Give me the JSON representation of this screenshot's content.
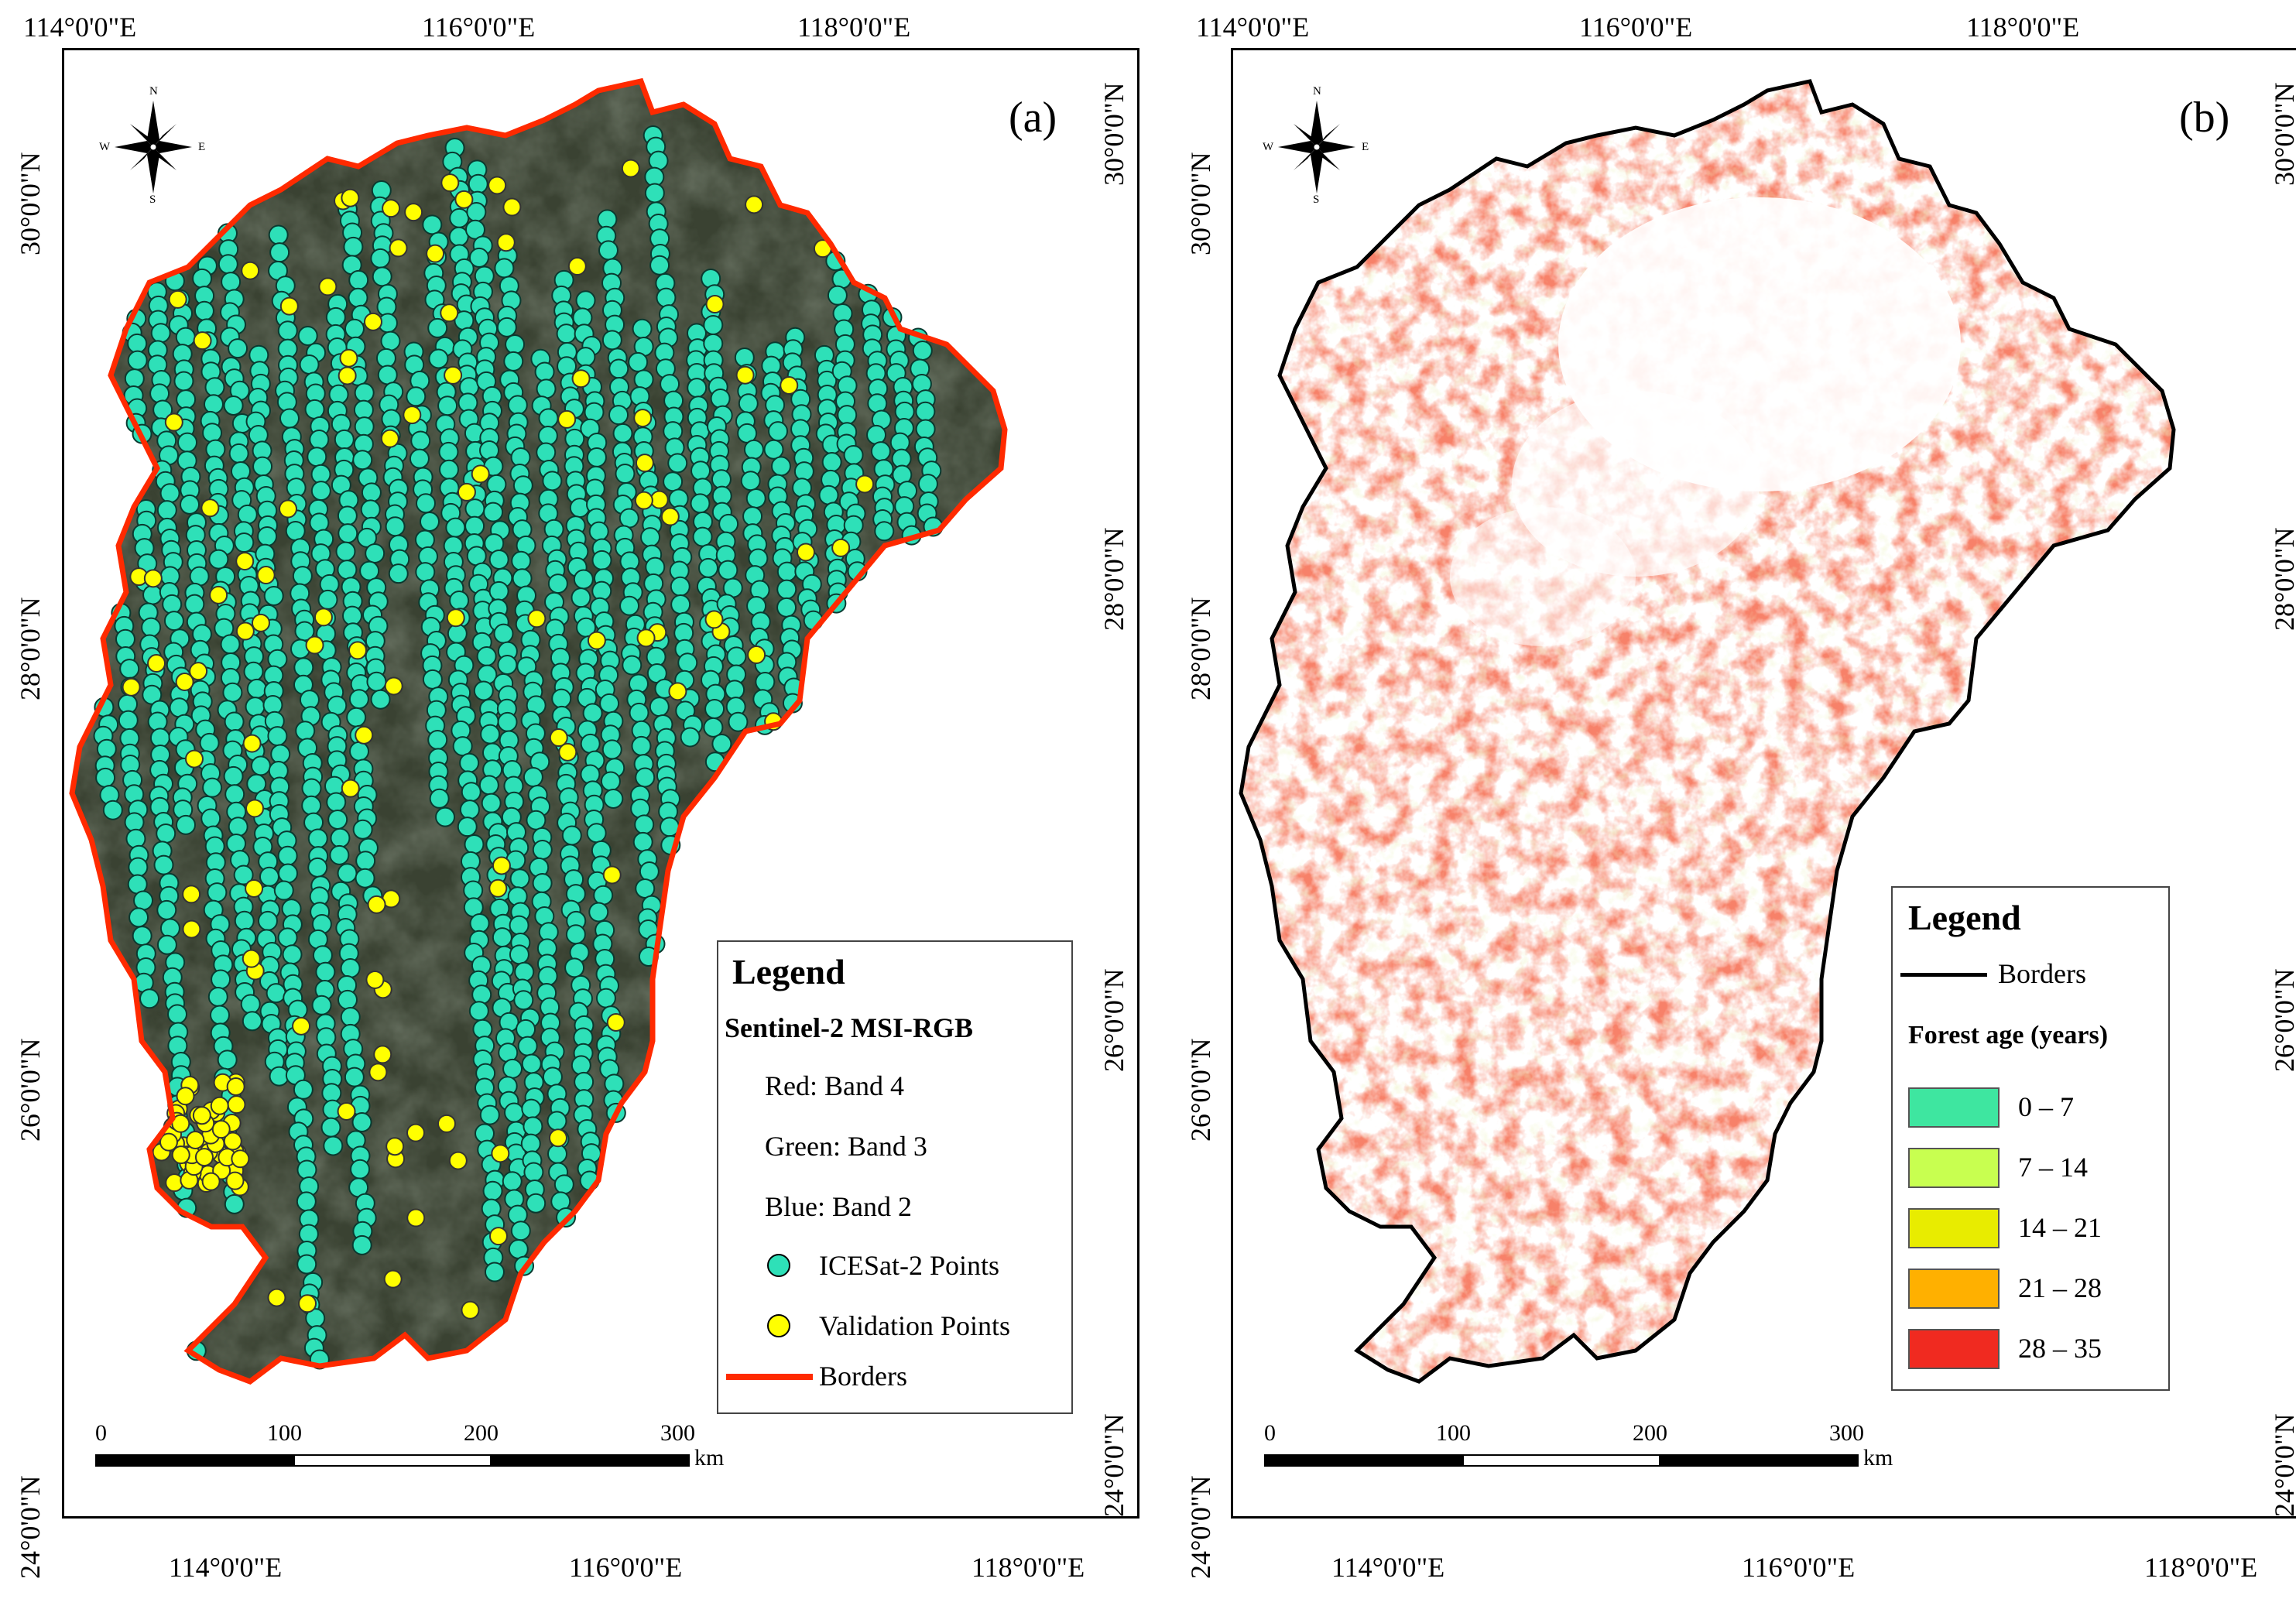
{
  "panels": [
    {
      "label": "(a)",
      "legend": {
        "title": "Legend",
        "subtitle": "Sentinel-2 MSI-RGB",
        "bands": [
          "Red: Band 4",
          "Green: Band 3",
          "Blue: Band 2"
        ],
        "items": [
          {
            "label": "ICESat-2 Points",
            "color": "#2ee0b8"
          },
          {
            "label": "Validation Points",
            "color": "#ffff00"
          },
          {
            "label": "Borders",
            "color": "#ff2a00"
          }
        ]
      }
    },
    {
      "label": "(b)",
      "legend": {
        "title": "Legend",
        "border_label": "Borders",
        "age_title": "Forest age (years)",
        "classes": [
          {
            "label": "0 – 7",
            "color": "#3ee6a0"
          },
          {
            "label": "7 – 14",
            "color": "#c8ff50"
          },
          {
            "label": "14 – 21",
            "color": "#e8ec00"
          },
          {
            "label": "21 – 28",
            "color": "#ffb000"
          },
          {
            "label": "28 – 35",
            "color": "#f02a20"
          }
        ]
      }
    }
  ],
  "axes": {
    "top": [
      "114°0'0\"E",
      "116°0'0\"E",
      "118°0'0\"E"
    ],
    "bottom": [
      "114°0'0\"E",
      "116°0'0\"E",
      "118°0'0\"E"
    ],
    "left": [
      "30°0'0\"N",
      "28°0'0\"N",
      "26°0'0\"N",
      "24°0'0\"N"
    ],
    "right": [
      "30°0'0\"N",
      "28°0'0\"N",
      "26°0'0\"N",
      "24°0'0\"N"
    ]
  },
  "scale_bar": {
    "ticks": [
      "0",
      "100",
      "200",
      "300"
    ],
    "unit": "km"
  },
  "compass": {
    "n": "N",
    "s": "S",
    "e": "E",
    "w": "W"
  }
}
